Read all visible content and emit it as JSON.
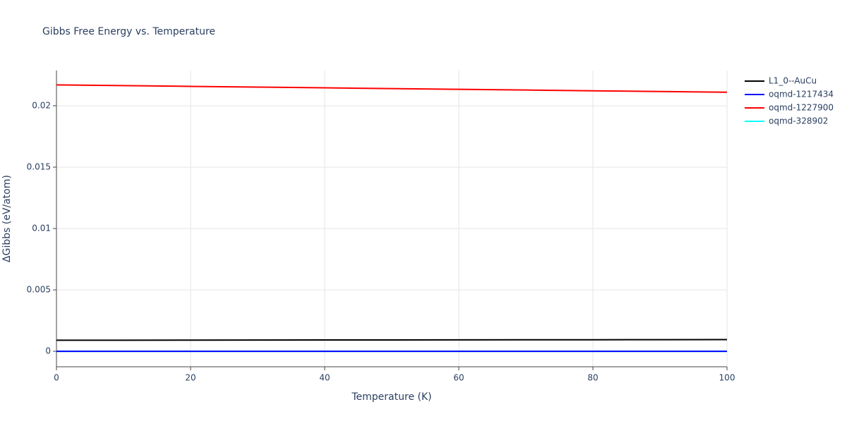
{
  "chart_data": {
    "type": "line",
    "title": "Gibbs Free Energy vs. Temperature",
    "x_label": "Temperature (K)",
    "y_label": "ΔGibbs (eV/atom)",
    "x": [
      0,
      10,
      20,
      30,
      40,
      50,
      60,
      70,
      80,
      90,
      100
    ],
    "series": [
      {
        "name": "L1_0--AuCu",
        "color": "#000000",
        "values": [
          0.0009,
          0.000905,
          0.00091,
          0.000915,
          0.00092,
          0.000925,
          0.00093,
          0.000935,
          0.00094,
          0.000945,
          0.00095
        ]
      },
      {
        "name": "oqmd-1217434",
        "color": "#0000ff",
        "values": [
          0,
          0,
          0,
          0,
          0,
          0,
          0,
          0,
          0,
          0,
          0
        ]
      },
      {
        "name": "oqmd-1227900",
        "color": "#ff0000",
        "values": [
          0.0217,
          0.02164,
          0.02158,
          0.02152,
          0.02146,
          0.0214,
          0.02134,
          0.02128,
          0.02122,
          0.02116,
          0.0211
        ]
      },
      {
        "name": "oqmd-328902",
        "color": "#00ffff",
        "values": [
          0,
          0,
          0,
          0,
          0,
          0,
          0,
          0,
          0,
          0,
          0
        ]
      }
    ],
    "xlim": [
      0,
      100
    ],
    "xticks": [
      0,
      20,
      40,
      60,
      80,
      100
    ],
    "ylim": [
      -0.00126,
      0.02287
    ],
    "yticks": [
      0,
      0.005,
      0.01,
      0.015,
      0.02
    ],
    "grid": true,
    "legend": "right"
  }
}
